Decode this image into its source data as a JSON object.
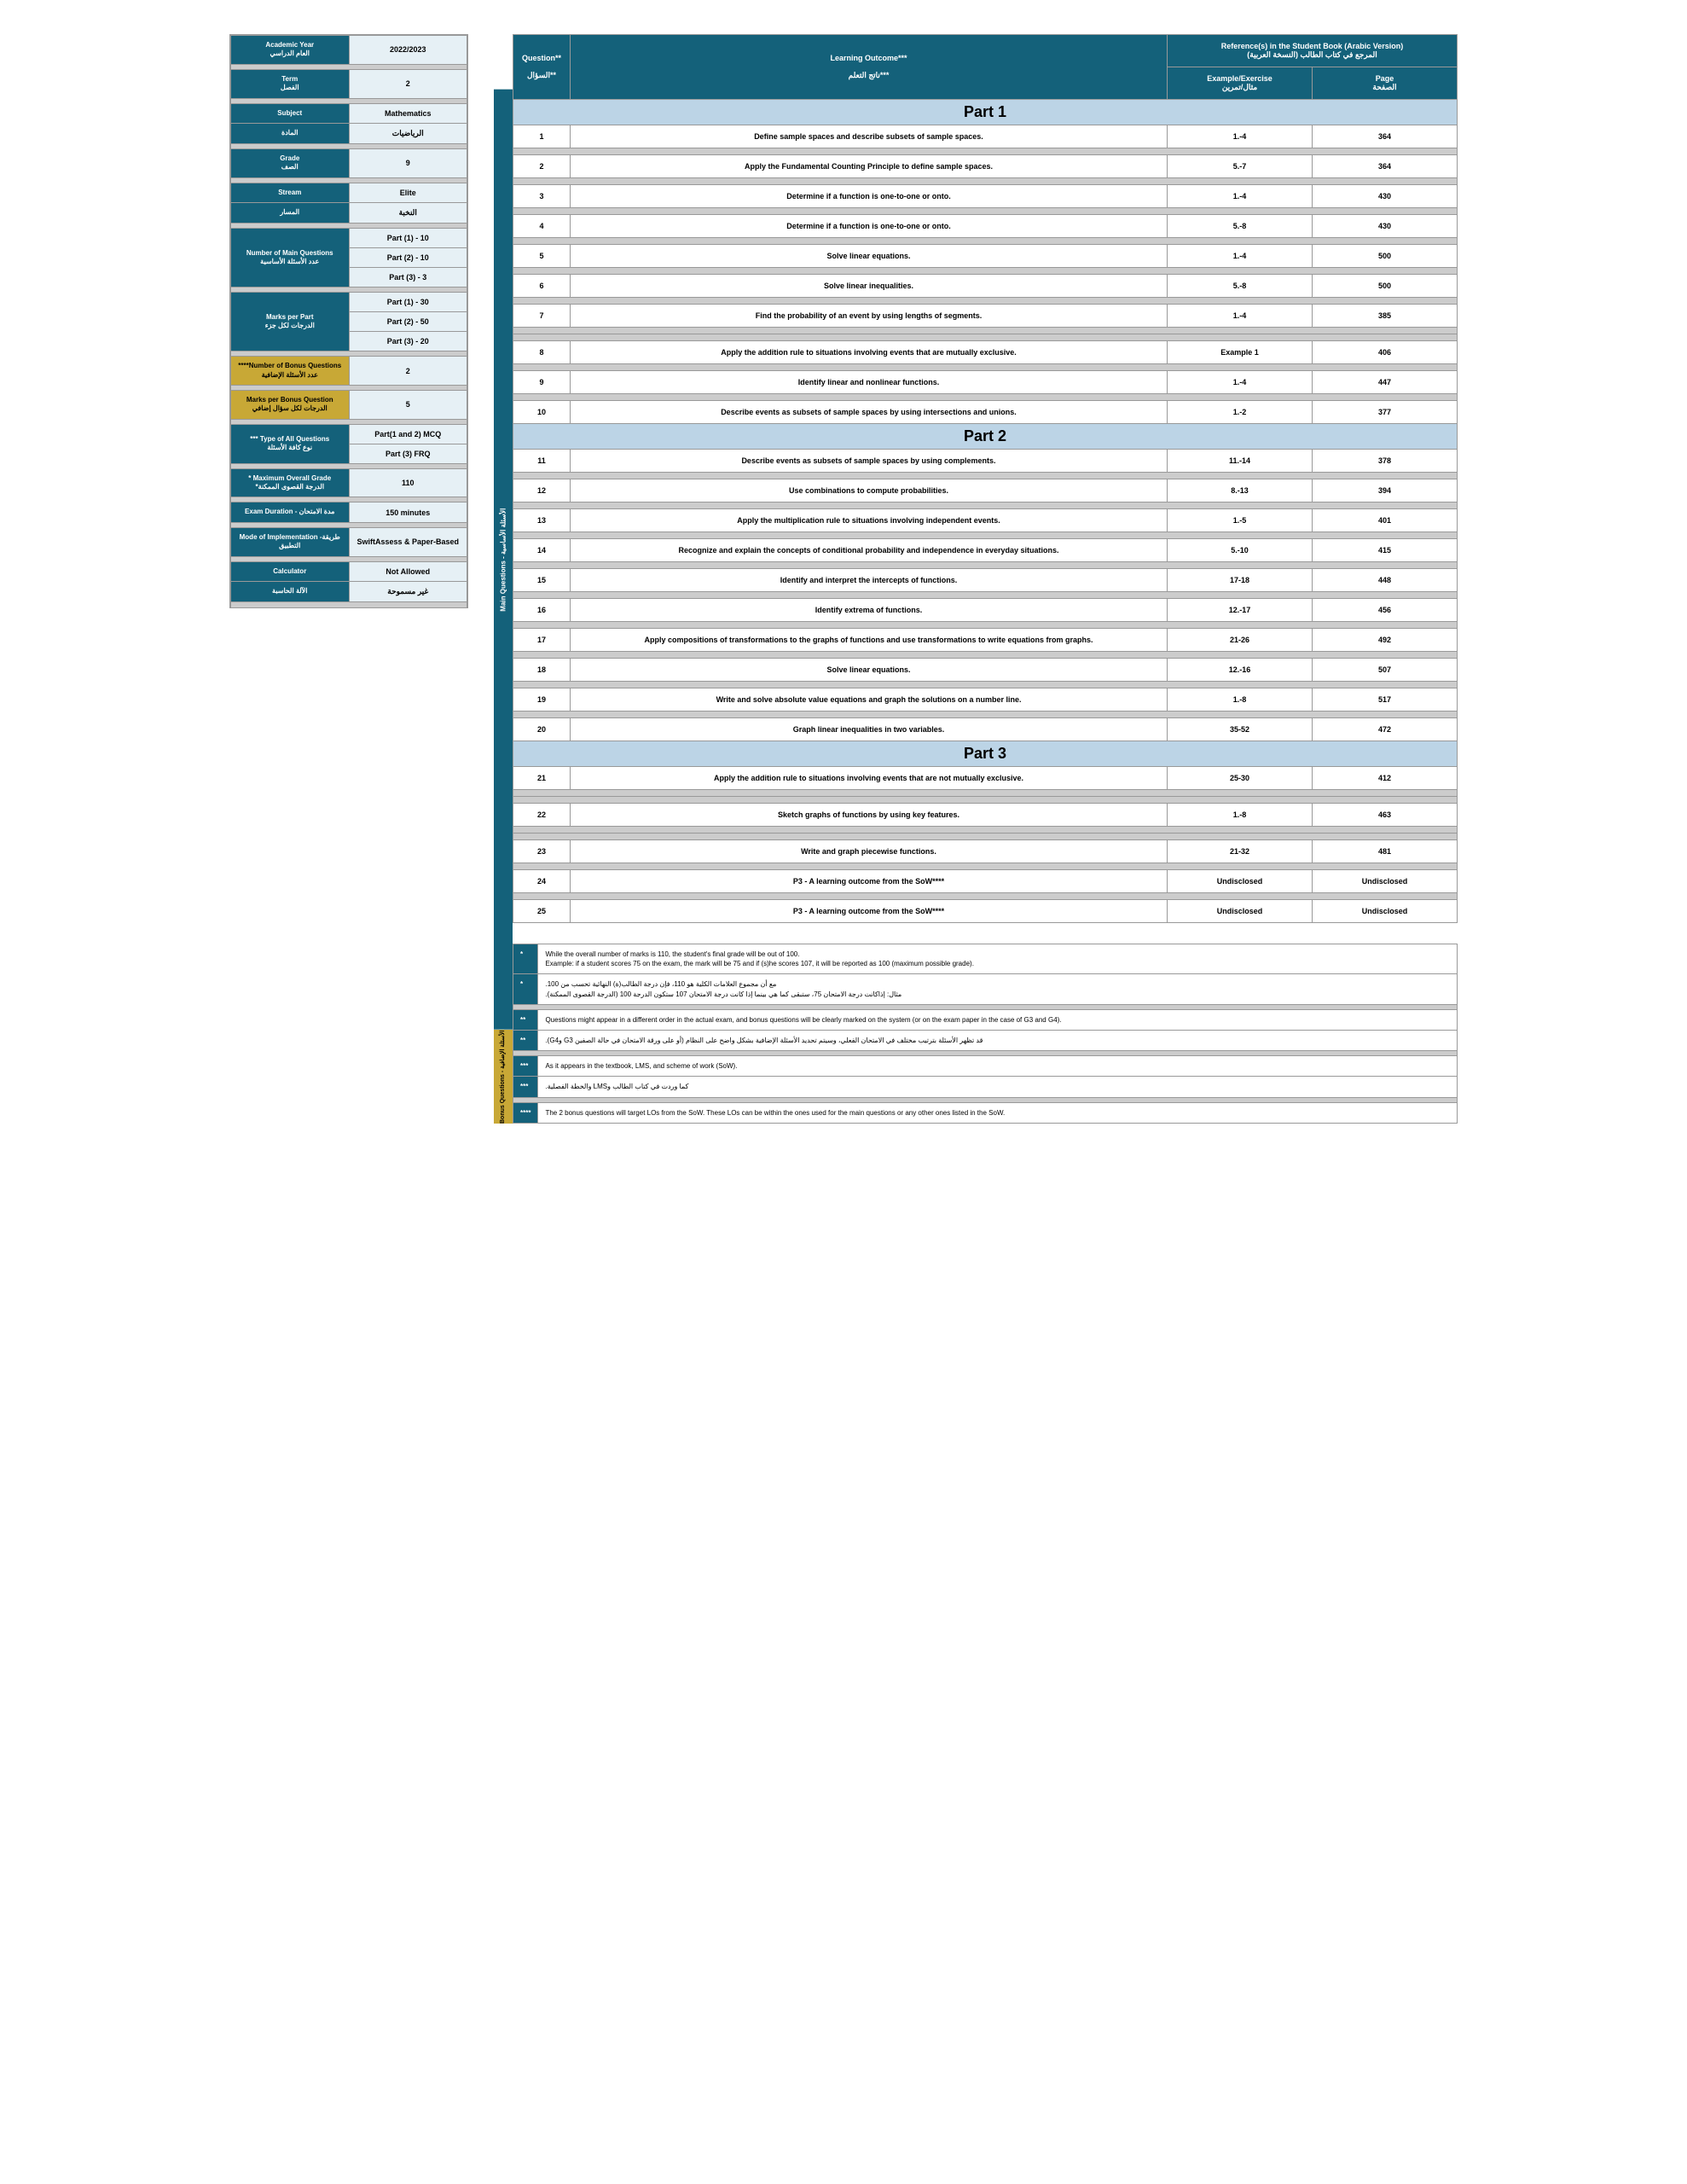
{
  "sidebar": {
    "rows": [
      {
        "type": "kv",
        "label_en": "Academic Year",
        "label_ar": "العام الدراسي",
        "value": "2022/2023",
        "lc": "sb-label",
        "vc": "sb-value",
        "vrowspan": 2
      },
      {
        "type": "labelonly",
        "label_ar": "",
        "lc": "sb-label"
      },
      {
        "type": "gap"
      },
      {
        "type": "kv",
        "label_en": "Term",
        "label_ar": "الفصل",
        "value": "2",
        "lc": "sb-label",
        "vc": "sb-value",
        "vrowspan": 2
      },
      {
        "type": "labelonly",
        "lc": "sb-label"
      },
      {
        "type": "gap"
      },
      {
        "type": "kv",
        "label_en": "Subject",
        "label_ar": "",
        "value": "Mathematics",
        "lc": "sb-label",
        "vc": "sb-value"
      },
      {
        "type": "kv",
        "label_en": "",
        "label_ar": "المادة",
        "value": "الرياضيات",
        "lc": "sb-label",
        "vc": "sb-value"
      },
      {
        "type": "gap"
      },
      {
        "type": "kv",
        "label_en": "Grade",
        "label_ar": "الصف",
        "value": "9",
        "lc": "sb-label",
        "vc": "sb-value",
        "vrowspan": 2
      },
      {
        "type": "labelonly",
        "lc": "sb-label"
      },
      {
        "type": "gap"
      },
      {
        "type": "kv",
        "label_en": "Stream",
        "label_ar": "",
        "value": "Elite",
        "lc": "sb-label",
        "vc": "sb-value"
      },
      {
        "type": "kv",
        "label_en": "",
        "label_ar": "المسار",
        "value": "النخبة",
        "lc": "sb-label",
        "vc": "sb-value"
      },
      {
        "type": "gap"
      },
      {
        "type": "kv",
        "label_en": "Number of Main Questions",
        "label_ar": "عدد الأسئلة الأساسية",
        "value": "Part (1) - 10",
        "lc": "sb-label",
        "vc": "sb-value",
        "lrowspan": 3
      },
      {
        "type": "valonly",
        "value": "Part (2) - 10",
        "vc": "sb-value"
      },
      {
        "type": "valonly",
        "value": "Part (3) - 3",
        "vc": "sb-value"
      },
      {
        "type": "gap"
      },
      {
        "type": "kv",
        "label_en": "Marks per Part",
        "label_ar": "الدرجات لكل جزء",
        "value": "Part (1) - 30",
        "lc": "sb-label",
        "vc": "sb-value",
        "lrowspan": 3
      },
      {
        "type": "valonly",
        "value": "Part (2) - 50",
        "vc": "sb-value"
      },
      {
        "type": "valonly",
        "value": "Part (3) - 20",
        "vc": "sb-value"
      },
      {
        "type": "gap"
      },
      {
        "type": "kv",
        "label_en": "****Number of Bonus Questions",
        "label_ar": "عدد الأسئلة الإضافية",
        "value": "2",
        "lc": "sb-label-y",
        "vc": "sb-value",
        "vrowspan": 1
      },
      {
        "type": "gap"
      },
      {
        "type": "kv",
        "label_en": "Marks per Bonus Question",
        "label_ar": "الدرجات لكل سؤال إضافي",
        "value": "5",
        "lc": "sb-label-y",
        "vc": "sb-value",
        "vrowspan": 1
      },
      {
        "type": "gap"
      },
      {
        "type": "kv",
        "label_en": "*** Type of All Questions",
        "label_ar": "نوع كافة الأسئلة",
        "value": "Part(1 and 2)  MCQ",
        "lc": "sb-label",
        "vc": "sb-value",
        "lrowspan": 2
      },
      {
        "type": "valonly",
        "value": "Part (3)  FRQ",
        "vc": "sb-value"
      },
      {
        "type": "gap"
      },
      {
        "type": "kv",
        "label_en": "* Maximum Overall Grade",
        "label_ar": "*الدرجة القصوى الممكنة",
        "value": "110",
        "lc": "sb-label",
        "vc": "sb-value"
      },
      {
        "type": "gap"
      },
      {
        "type": "kv",
        "label_en": "Exam Duration - مدة الامتحان",
        "label_ar": "",
        "value": "150 minutes",
        "lc": "sb-label",
        "vc": "sb-value"
      },
      {
        "type": "gap"
      },
      {
        "type": "kv",
        "label_en": "Mode of Implementation -طريقة التطبيق",
        "label_ar": "",
        "value": "SwiftAssess & Paper-Based",
        "lc": "sb-label",
        "vc": "sb-value"
      },
      {
        "type": "gap"
      },
      {
        "type": "kv",
        "label_en": "Calculator",
        "label_ar": "",
        "value": "Not Allowed",
        "lc": "sb-label",
        "vc": "sb-value"
      },
      {
        "type": "kv",
        "label_en": "",
        "label_ar": "الآلة الحاسبة",
        "value": "غير مسموحة",
        "lc": "sb-label",
        "vc": "sb-value"
      },
      {
        "type": "gap"
      }
    ]
  },
  "vtab": {
    "main": "Main Questions   -   الأسئلة الأساسية",
    "bonus": "Bonus Questions - الأسئلة الإضافية"
  },
  "header": {
    "q_en": "Question**",
    "lo_en": "Learning Outcome***",
    "ref_en": "Reference(s) in the Student Book (Arabic  Version)",
    "ref_ar": "المرجع في كتاب الطالب (النسخة العربية)",
    "q_ar": "السؤال**",
    "lo_ar": "ناتج التعلم***",
    "ex_en": "Example/Exercise",
    "ex_ar": "مثال/تمرين",
    "pg_en": "Page",
    "pg_ar": "الصفحة"
  },
  "parts": [
    "Part 1",
    "Part 2",
    "Part 3"
  ],
  "rows": [
    {
      "part": 1
    },
    {
      "n": "1",
      "lo": "Define sample spaces and describe subsets of sample spaces.",
      "ex": "1.-4",
      "pg": "364"
    },
    {
      "gap": 1
    },
    {
      "n": "2",
      "lo": "Apply the Fundamental Counting Principle to define sample spaces.",
      "ex": "5.-7",
      "pg": "364"
    },
    {
      "gap": 1
    },
    {
      "n": "3",
      "lo": "Determine if a function is one-to-one or onto.",
      "ex": "1.-4",
      "pg": "430"
    },
    {
      "gap": 1
    },
    {
      "n": "4",
      "lo": "Determine if a function is one-to-one or onto.",
      "ex": "5.-8",
      "pg": "430"
    },
    {
      "gap": 1
    },
    {
      "n": "5",
      "lo": "Solve linear equations.",
      "ex": "1.-4",
      "pg": "500"
    },
    {
      "gap": 1
    },
    {
      "n": "6",
      "lo": "Solve linear inequalities.",
      "ex": "5.-8",
      "pg": "500"
    },
    {
      "gap": 1
    },
    {
      "n": "7",
      "lo": "Find the probability of an event by using lengths of segments.",
      "ex": "1.-4",
      "pg": "385"
    },
    {
      "gap": 1
    },
    {
      "gap": 1
    },
    {
      "n": "8",
      "lo": "Apply the addition rule to situations involving events that are mutually exclusive.",
      "ex": "Example 1",
      "pg": "406"
    },
    {
      "gap": 1
    },
    {
      "n": "9",
      "lo": "Identify linear and nonlinear functions.",
      "ex": "1.-4",
      "pg": "447"
    },
    {
      "gap": 1
    },
    {
      "n": "10",
      "lo": "Describe events as subsets of sample spaces by using intersections and unions.",
      "ex": "1.-2",
      "pg": "377"
    },
    {
      "part": 2
    },
    {
      "n": "11",
      "lo": "Describe events as subsets of sample spaces by using complements.",
      "ex": "11.-14",
      "pg": "378"
    },
    {
      "gap": 1
    },
    {
      "n": "12",
      "lo": "Use combinations to compute probabilities.",
      "ex": "8.-13",
      "pg": "394"
    },
    {
      "gap": 1
    },
    {
      "n": "13",
      "lo": "Apply the multiplication rule to situations involving independent events.",
      "ex": "1.-5",
      "pg": "401"
    },
    {
      "gap": 1
    },
    {
      "n": "14",
      "lo": "Recognize and explain the concepts of conditional probability and independence in everyday situations.",
      "ex": "5.-10",
      "pg": "415"
    },
    {
      "gap": 1
    },
    {
      "n": "15",
      "lo": "Identify and interpret the intercepts of functions.",
      "ex": "17-18",
      "pg": "448"
    },
    {
      "gap": 1
    },
    {
      "n": "16",
      "lo": "Identify extrema of functions.",
      "ex": "12.-17",
      "pg": "456"
    },
    {
      "gap": 1
    },
    {
      "n": "17",
      "lo": "Apply compositions of transformations to the graphs of functions and use transformations to write equations from graphs.",
      "ex": "21-26",
      "pg": "492"
    },
    {
      "gap": 1
    },
    {
      "n": "18",
      "lo": "Solve linear equations.",
      "ex": "12.-16",
      "pg": "507"
    },
    {
      "gap": 1
    },
    {
      "n": "19",
      "lo": "Write and solve absolute value equations and graph the solutions on a number line.",
      "ex": "1.-8",
      "pg": "517"
    },
    {
      "gap": 1
    },
    {
      "n": "20",
      "lo": "Graph linear inequalities in two variables.",
      "ex": "35-52",
      "pg": "472"
    },
    {
      "part": 3
    },
    {
      "n": "21",
      "lo": "Apply the addition rule to situations involving events that are not mutually exclusive.",
      "ex": "25-30",
      "pg": "412"
    },
    {
      "gap": 1
    },
    {
      "gap": 1
    },
    {
      "n": "22",
      "lo": "Sketch graphs of functions by using key features.",
      "ex": "1.-8",
      "pg": "463"
    },
    {
      "gap": 1
    },
    {
      "gap": 1
    },
    {
      "n": "23",
      "lo": "Write and graph piecewise functions.",
      "ex": "21-32",
      "pg": "481"
    },
    {
      "gap": 1
    },
    {
      "n": "24",
      "lo": "P3 - A learning outcome from the SoW****",
      "ex": "Undisclosed",
      "pg": "Undisclosed",
      "bonus": 1
    },
    {
      "gap": 1
    },
    {
      "n": "25",
      "lo": "P3 - A learning outcome from the SoW****",
      "ex": "Undisclosed",
      "pg": "Undisclosed",
      "bonus": 1
    }
  ],
  "notes": [
    {
      "star": "*",
      "en": "While the overall number of marks is 110, the student's final grade will be out of 100.\nExample: if a student scores 75 on the exam, the mark will be 75 and if (s)he scores 107, it will be reported as 100 (maximum possible grade)."
    },
    {
      "star": "*",
      "ar": "مع أن مجموع العلامات الكلية هو 110، فإن درجة الطالب(ة) النهائية تحسب من 100.\nمثال: إذاكانت درجة الامتحان 75، ستبقى كما هي بينما إذا كانت درجة الامتحان 107 ستكون الدرجة 100 (الدرجة القصوى الممكنة)."
    },
    {
      "gap": 1
    },
    {
      "star": "**",
      "en": "Questions might appear in a different order in the actual exam, and bonus questions will be clearly marked on the system (or on the exam paper in the case of G3 and G4)."
    },
    {
      "star": "**",
      "ar": "قد تظهر الأسئلة بترتيب مختلف في الامتحان الفعلي، وسيتم تحديد الأسئلة الإضافية بشكل واضح على النظام (أو على ورقة الامتحان في حالة الصفين G3 وG4)."
    },
    {
      "gap": 1
    },
    {
      "star": "***",
      "en": "As it appears in the textbook, LMS, and scheme of work (SoW)."
    },
    {
      "star": "***",
      "ar": "كما وردت في كتاب الطالب وLMS والخطة الفصلية."
    },
    {
      "gap": 1
    },
    {
      "star": "****",
      "en": "The 2 bonus questions will target LOs from the SoW. These LOs can be within the ones used for the main questions or any other ones listed in the SoW."
    }
  ]
}
